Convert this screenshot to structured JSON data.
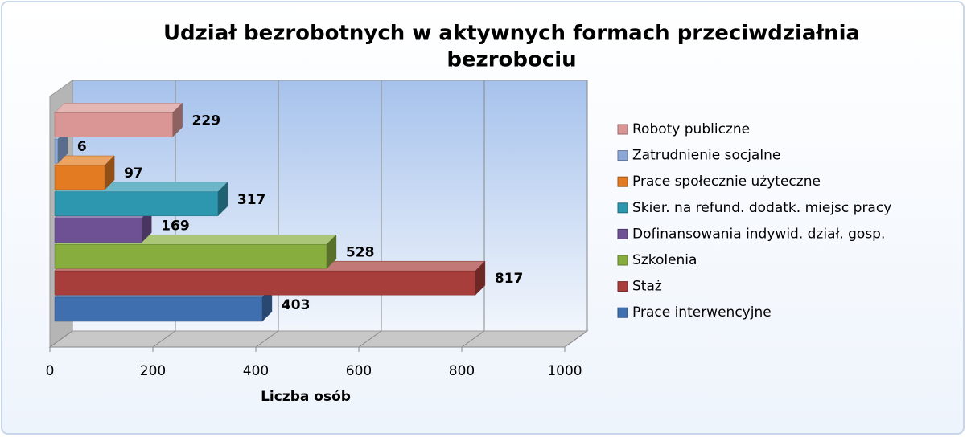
{
  "chart_data": {
    "type": "bar3d_horizontal",
    "title": "Udział bezrobotnych w aktywnych formach przeciwdziałnia bezrobociu",
    "x_label": "Liczba osób",
    "xlim": [
      0,
      1000
    ],
    "xticks": [
      0,
      200,
      400,
      600,
      800,
      1000
    ],
    "grid": true,
    "legend": "right",
    "series": [
      {
        "name": "Prace interwencyjne",
        "color": "#3f6fae",
        "values": [
          403
        ]
      },
      {
        "name": "Staż",
        "color": "#a83e3b",
        "values": [
          817
        ]
      },
      {
        "name": "Szkolenia",
        "color": "#88ad3f",
        "values": [
          528
        ]
      },
      {
        "name": "Dofinansowania indywid. dział. gosp.",
        "color": "#6e5194",
        "values": [
          169
        ]
      },
      {
        "name": "Skier. na refund. dodatk. miejsc pracy",
        "color": "#2e97b0",
        "values": [
          317
        ]
      },
      {
        "name": "Prace społecznie użyteczne",
        "color": "#e27b22",
        "values": [
          97
        ]
      },
      {
        "name": "Zatrudnienie socjalne",
        "color": "#8ca8d8",
        "values": [
          6
        ]
      },
      {
        "name": "Roboty publiczne",
        "color": "#d99694",
        "values": [
          229
        ]
      }
    ]
  }
}
